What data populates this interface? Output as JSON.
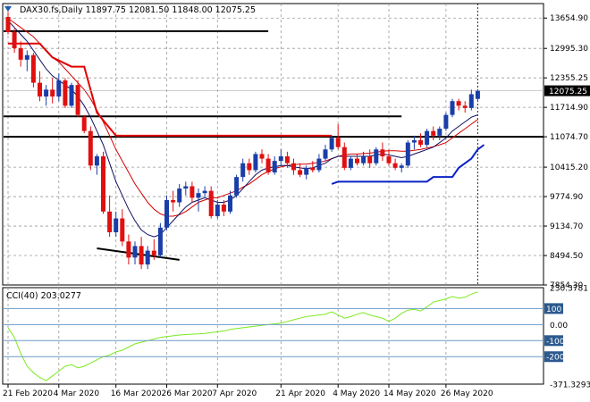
{
  "chart_data": [
    {
      "type": "candlestick",
      "symbol": "DAX30.fs",
      "timeframe": "Daily",
      "ohlc_label": "11897.75 12081.50 11848.00 12075.25",
      "last_price_label": "12075.25",
      "ylim": [
        7854.3,
        13970
      ],
      "y_ticks": [
        "13654.90",
        "12995.30",
        "12355.25",
        "11714.90",
        "11074.70",
        "10415.20",
        "9774.90",
        "9134.70",
        "8494.50",
        "7854.30"
      ],
      "x_ticks": [
        "21 Feb 2020",
        "4 Mar 2020",
        "16 Mar 2020",
        "26 Mar 2020",
        "7 Apr 2020",
        "21 Apr 2020",
        "4 May 2020",
        "14 May 2020",
        "26 May 2020"
      ],
      "x_tick_index": [
        0,
        8,
        17,
        25,
        33,
        43,
        52,
        60,
        69
      ],
      "candles": [
        {
          "o": 13680,
          "h": 13790,
          "l": 13300,
          "c": 13350
        },
        {
          "o": 13350,
          "h": 13420,
          "l": 12900,
          "c": 13000
        },
        {
          "o": 13000,
          "h": 13150,
          "l": 12600,
          "c": 12750
        },
        {
          "o": 12750,
          "h": 12950,
          "l": 12500,
          "c": 12850
        },
        {
          "o": 12850,
          "h": 12900,
          "l": 12150,
          "c": 12250
        },
        {
          "o": 12250,
          "h": 12500,
          "l": 11850,
          "c": 11950
        },
        {
          "o": 11950,
          "h": 12200,
          "l": 11750,
          "c": 12100
        },
        {
          "o": 12100,
          "h": 12350,
          "l": 11800,
          "c": 11950
        },
        {
          "o": 11950,
          "h": 12450,
          "l": 11850,
          "c": 12300
        },
        {
          "o": 12300,
          "h": 12350,
          "l": 11700,
          "c": 11750
        },
        {
          "o": 11750,
          "h": 12250,
          "l": 11700,
          "c": 12200
        },
        {
          "o": 12200,
          "h": 12300,
          "l": 11500,
          "c": 11550
        },
        {
          "o": 11500,
          "h": 11550,
          "l": 11150,
          "c": 11200
        },
        {
          "o": 11200,
          "h": 11300,
          "l": 10350,
          "c": 10450
        },
        {
          "o": 10450,
          "h": 10700,
          "l": 10250,
          "c": 10650
        },
        {
          "o": 10650,
          "h": 10750,
          "l": 9400,
          "c": 9450
        },
        {
          "o": 9450,
          "h": 9800,
          "l": 8900,
          "c": 9000
        },
        {
          "o": 9000,
          "h": 9450,
          "l": 8900,
          "c": 9300
        },
        {
          "o": 9300,
          "h": 9500,
          "l": 8700,
          "c": 8800
        },
        {
          "o": 8800,
          "h": 8950,
          "l": 8300,
          "c": 8450
        },
        {
          "o": 8450,
          "h": 8800,
          "l": 8300,
          "c": 8700
        },
        {
          "o": 8700,
          "h": 8900,
          "l": 8200,
          "c": 8300
        },
        {
          "o": 8300,
          "h": 8700,
          "l": 8200,
          "c": 8600
        },
        {
          "o": 8600,
          "h": 8850,
          "l": 8400,
          "c": 8500
        },
        {
          "o": 8500,
          "h": 9200,
          "l": 8450,
          "c": 9100
        },
        {
          "o": 9100,
          "h": 9800,
          "l": 9050,
          "c": 9700
        },
        {
          "o": 9700,
          "h": 9900,
          "l": 9450,
          "c": 9650
        },
        {
          "o": 9650,
          "h": 10050,
          "l": 9550,
          "c": 9950
        },
        {
          "o": 9950,
          "h": 10100,
          "l": 9800,
          "c": 10000
        },
        {
          "o": 10000,
          "h": 10100,
          "l": 9650,
          "c": 9750
        },
        {
          "o": 9750,
          "h": 9950,
          "l": 9450,
          "c": 9850
        },
        {
          "o": 9850,
          "h": 10000,
          "l": 9750,
          "c": 9900
        },
        {
          "o": 9900,
          "h": 10000,
          "l": 9300,
          "c": 9350
        },
        {
          "o": 9350,
          "h": 9700,
          "l": 9300,
          "c": 9600
        },
        {
          "o": 9600,
          "h": 9700,
          "l": 9350,
          "c": 9450
        },
        {
          "o": 9450,
          "h": 9900,
          "l": 9400,
          "c": 9800
        },
        {
          "o": 9800,
          "h": 10250,
          "l": 9750,
          "c": 10200
        },
        {
          "o": 10200,
          "h": 10600,
          "l": 10100,
          "c": 10500
        },
        {
          "o": 10500,
          "h": 10600,
          "l": 10250,
          "c": 10350
        },
        {
          "o": 10350,
          "h": 10750,
          "l": 10300,
          "c": 10700
        },
        {
          "o": 10700,
          "h": 10800,
          "l": 10500,
          "c": 10600
        },
        {
          "o": 10600,
          "h": 10700,
          "l": 10250,
          "c": 10300
        },
        {
          "o": 10300,
          "h": 10650,
          "l": 10250,
          "c": 10550
        },
        {
          "o": 10550,
          "h": 10800,
          "l": 10450,
          "c": 10650
        },
        {
          "o": 10650,
          "h": 10750,
          "l": 10400,
          "c": 10500
        },
        {
          "o": 10500,
          "h": 10600,
          "l": 10250,
          "c": 10350
        },
        {
          "o": 10350,
          "h": 10500,
          "l": 10200,
          "c": 10250
        },
        {
          "o": 10250,
          "h": 10450,
          "l": 10150,
          "c": 10400
        },
        {
          "o": 10400,
          "h": 10550,
          "l": 10300,
          "c": 10350
        },
        {
          "o": 10350,
          "h": 10700,
          "l": 10300,
          "c": 10600
        },
        {
          "o": 10600,
          "h": 10900,
          "l": 10550,
          "c": 10800
        },
        {
          "o": 10800,
          "h": 11100,
          "l": 10750,
          "c": 11050
        },
        {
          "o": 11050,
          "h": 11350,
          "l": 10800,
          "c": 10850
        },
        {
          "o": 10850,
          "h": 10950,
          "l": 10350,
          "c": 10400
        },
        {
          "o": 10400,
          "h": 10650,
          "l": 10350,
          "c": 10600
        },
        {
          "o": 10600,
          "h": 10700,
          "l": 10450,
          "c": 10500
        },
        {
          "o": 10500,
          "h": 10750,
          "l": 10450,
          "c": 10650
        },
        {
          "o": 10650,
          "h": 10800,
          "l": 10400,
          "c": 10500
        },
        {
          "o": 10500,
          "h": 10850,
          "l": 10450,
          "c": 10800
        },
        {
          "o": 10800,
          "h": 10950,
          "l": 10550,
          "c": 10650
        },
        {
          "o": 10650,
          "h": 10800,
          "l": 10450,
          "c": 10500
        },
        {
          "o": 10500,
          "h": 10600,
          "l": 10350,
          "c": 10400
        },
        {
          "o": 10400,
          "h": 10500,
          "l": 10300,
          "c": 10450
        },
        {
          "o": 10450,
          "h": 11000,
          "l": 10400,
          "c": 10950
        },
        {
          "o": 10950,
          "h": 11100,
          "l": 10800,
          "c": 11000
        },
        {
          "o": 11000,
          "h": 11150,
          "l": 10850,
          "c": 10900
        },
        {
          "o": 10900,
          "h": 11250,
          "l": 10850,
          "c": 11200
        },
        {
          "o": 11200,
          "h": 11300,
          "l": 11000,
          "c": 11100
        },
        {
          "o": 11100,
          "h": 11300,
          "l": 11000,
          "c": 11250
        },
        {
          "o": 11250,
          "h": 11600,
          "l": 11200,
          "c": 11550
        },
        {
          "o": 11550,
          "h": 11900,
          "l": 11500,
          "c": 11850
        },
        {
          "o": 11850,
          "h": 11900,
          "l": 11650,
          "c": 11750
        },
        {
          "o": 11750,
          "h": 11850,
          "l": 11600,
          "c": 11700
        },
        {
          "o": 11700,
          "h": 12100,
          "l": 11650,
          "c": 12000
        },
        {
          "o": 11897.75,
          "h": 12081.5,
          "l": 11848.0,
          "c": 12075.25
        }
      ],
      "ma_fast": [
        13600,
        13450,
        13300,
        13150,
        12950,
        12750,
        12550,
        12400,
        12300,
        12200,
        12100,
        11950,
        11750,
        11500,
        11200,
        10900,
        10500,
        10100,
        9800,
        9500,
        9250,
        9050,
        8950,
        8900,
        8950,
        9100,
        9250,
        9400,
        9550,
        9650,
        9700,
        9750,
        9700,
        9650,
        9650,
        9700,
        9800,
        9950,
        10100,
        10250,
        10350,
        10400,
        10420,
        10450,
        10450,
        10420,
        10400,
        10380,
        10400,
        10450,
        10500,
        10600,
        10650,
        10650,
        10650,
        10650,
        10650,
        10650,
        10680,
        10700,
        10680,
        10650,
        10620,
        10650,
        10700,
        10750,
        10800,
        10850,
        10950,
        11050,
        11200,
        11300,
        11400,
        11500,
        11550
      ],
      "ma_slow": [
        13650,
        13550,
        13450,
        13350,
        13250,
        13100,
        12950,
        12800,
        12700,
        12550,
        12400,
        12250,
        12100,
        11900,
        11650,
        11400,
        11100,
        10800,
        10550,
        10300,
        10050,
        9850,
        9650,
        9500,
        9400,
        9350,
        9350,
        9380,
        9450,
        9550,
        9650,
        9700,
        9750,
        9750,
        9800,
        9850,
        9900,
        9980,
        10050,
        10150,
        10250,
        10320,
        10380,
        10420,
        10450,
        10470,
        10480,
        10480,
        10500,
        10520,
        10550,
        10600,
        10650,
        10680,
        10700,
        10700,
        10710,
        10720,
        10740,
        10760,
        10770,
        10770,
        10760,
        10760,
        10780,
        10800,
        10830,
        10860,
        10900,
        10950,
        11050,
        11150,
        11250,
        11350,
        11450
      ],
      "red_step_line": [
        [
          0,
          13100
        ],
        [
          5,
          13100
        ],
        [
          6,
          12950
        ],
        [
          7,
          12800
        ],
        [
          10,
          12600
        ],
        [
          12,
          12600
        ],
        [
          14,
          11600
        ],
        [
          17,
          11100
        ],
        [
          26,
          11100
        ],
        [
          50,
          11100
        ],
        [
          51,
          11100
        ]
      ],
      "blue_step_line": [
        [
          51,
          10050
        ],
        [
          52,
          10100
        ],
        [
          66,
          10100
        ],
        [
          67,
          10200
        ],
        [
          70,
          10200
        ],
        [
          71,
          10400
        ],
        [
          73,
          10600
        ],
        [
          74,
          10800
        ],
        [
          75,
          10900
        ]
      ],
      "horizontal_lines": [
        {
          "y": 13370,
          "from": 0,
          "to": 41
        },
        {
          "y": 11520,
          "from": 0,
          "to": 62
        },
        {
          "y": 11074.7,
          "from": 0,
          "to": 120
        }
      ],
      "trend_line": [
        [
          14,
          8650
        ],
        [
          27,
          8400
        ]
      ]
    },
    {
      "type": "line",
      "indicator": "CCI(40)",
      "label": "CCI(40) 203.0277",
      "ylim": [
        -371.3293,
        230.3781
      ],
      "y_ticks": [
        "230.3781",
        "100",
        "0.00",
        "-100",
        "-200",
        "-371.3293"
      ],
      "highlighted_ticks": [
        "100",
        "-100",
        "-200"
      ],
      "levels": [
        100,
        0,
        -100,
        -200
      ],
      "values": [
        -20,
        -80,
        -180,
        -260,
        -300,
        -330,
        -350,
        -320,
        -290,
        -260,
        -250,
        -270,
        -260,
        -240,
        -220,
        -200,
        -190,
        -170,
        -160,
        -140,
        -120,
        -110,
        -100,
        -90,
        -80,
        -75,
        -70,
        -65,
        -62,
        -60,
        -58,
        -55,
        -50,
        -45,
        -40,
        -30,
        -25,
        -20,
        -15,
        -10,
        -5,
        0,
        5,
        10,
        20,
        30,
        40,
        50,
        55,
        60,
        65,
        80,
        60,
        40,
        50,
        65,
        75,
        60,
        50,
        40,
        20,
        40,
        70,
        90,
        95,
        85,
        110,
        140,
        150,
        160,
        175,
        165,
        170,
        190,
        203
      ]
    }
  ]
}
